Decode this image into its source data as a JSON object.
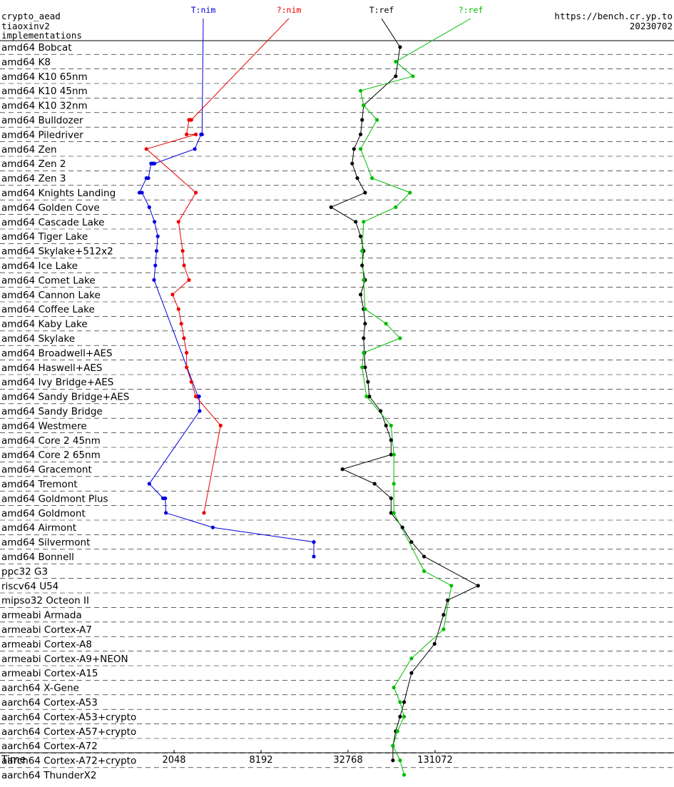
{
  "header": {
    "line1": "crypto_aead",
    "line2": "tiaoxinv2",
    "line3": "implementations",
    "site": "https://bench.cr.yp.to",
    "date": "20230702"
  },
  "chart_data": {
    "type": "scatter",
    "title": "",
    "xlabel": "Time",
    "ylabel": "",
    "x_scale": "log2",
    "xlim": [
      512,
      524288
    ],
    "x_ticks": [
      2048,
      8192,
      32768,
      131072
    ],
    "legend": "top, each series labeled at the top end of its line",
    "colors": {
      "T:nim": "#0000dd",
      "?:nim": "#ee0000",
      "T:ref": "#000000",
      "?:ref": "#00bb00"
    },
    "categories": [
      "amd64 Bobcat",
      "amd64 K8",
      "amd64 K10 65nm",
      "amd64 K10 45nm",
      "amd64 K10 32nm",
      "amd64 Bulldozer",
      "amd64 Piledriver",
      "amd64 Zen",
      "amd64 Zen 2",
      "amd64 Zen 3",
      "amd64 Knights Landing",
      "amd64 Golden Cove",
      "amd64 Cascade Lake",
      "amd64 Tiger Lake",
      "amd64 Skylake+512x2",
      "amd64 Ice Lake",
      "amd64 Comet Lake",
      "amd64 Cannon Lake",
      "amd64 Coffee Lake",
      "amd64 Kaby Lake",
      "amd64 Skylake",
      "amd64 Broadwell+AES",
      "amd64 Haswell+AES",
      "amd64 Ivy Bridge+AES",
      "amd64 Sandy Bridge+AES",
      "amd64 Sandy Bridge",
      "amd64 Westmere",
      "amd64 Core 2 45nm",
      "amd64 Core 2 65nm",
      "amd64 Gracemont",
      "amd64 Tremont",
      "amd64 Goldmont Plus",
      "amd64 Goldmont",
      "amd64 Airmont",
      "amd64 Silvermont",
      "amd64 Bonnell",
      "ppc32 G3",
      "riscv64 U54",
      "mipso32 Octeon II",
      "armeabi Armada",
      "armeabi Cortex-A7",
      "armeabi Cortex-A8",
      "armeabi Cortex-A9+NEON",
      "armeabi Cortex-A15",
      "aarch64 X-Gene",
      "aarch64 Cortex-A53",
      "aarch64 Cortex-A53+crypto",
      "aarch64 Cortex-A57+crypto",
      "aarch64 Cortex-A72",
      "aarch64 Cortex-A72+crypto",
      "aarch64 ThunderX2"
    ],
    "series": [
      {
        "name": "T:nim",
        "points": [
          [
            3,
            6,
            3200
          ],
          [
            3,
            6,
            3150
          ],
          [
            3,
            7,
            2850
          ],
          [
            3,
            8,
            1500
          ],
          [
            3,
            8,
            1480
          ],
          [
            3,
            8,
            1460
          ],
          [
            3,
            8,
            1440
          ],
          [
            3,
            8,
            1420
          ],
          [
            3,
            9,
            1360
          ],
          [
            3,
            9,
            1320
          ],
          [
            3,
            10,
            1180
          ],
          [
            3,
            10,
            1230
          ],
          [
            3,
            11,
            1380
          ],
          [
            3,
            12,
            1500
          ],
          [
            3,
            13,
            1580
          ],
          [
            3,
            14,
            1550
          ],
          [
            3,
            15,
            1520
          ],
          [
            3,
            16,
            1490
          ],
          [
            3,
            24,
            3000
          ],
          [
            3,
            24,
            3050
          ],
          [
            3,
            25,
            3080
          ],
          [
            3,
            30,
            1380
          ],
          [
            3,
            31,
            1720
          ],
          [
            3,
            31,
            1780
          ],
          [
            3,
            32,
            1800
          ],
          [
            3,
            33,
            3800
          ],
          [
            3,
            34,
            19000
          ],
          [
            3,
            35,
            19000
          ]
        ]
      },
      {
        "name": "?:nim",
        "points": [
          [
            3,
            5,
            2700
          ],
          [
            3,
            5,
            2650
          ],
          [
            3,
            5,
            2600
          ],
          [
            3,
            6,
            2500
          ],
          [
            3,
            6,
            2900
          ],
          [
            3,
            7,
            1320
          ],
          [
            3,
            10,
            2900
          ],
          [
            3,
            12,
            2200
          ],
          [
            3,
            14,
            2350
          ],
          [
            3,
            15,
            2400
          ],
          [
            3,
            16,
            2600
          ],
          [
            3,
            17,
            2000
          ],
          [
            3,
            18,
            2200
          ],
          [
            3,
            19,
            2300
          ],
          [
            3,
            20,
            2400
          ],
          [
            3,
            21,
            2500
          ],
          [
            3,
            22,
            2500
          ],
          [
            3,
            23,
            2700
          ],
          [
            3,
            24,
            2900
          ],
          [
            3,
            26,
            4300
          ],
          [
            3,
            32,
            3300
          ]
        ]
      },
      {
        "name": "T:ref",
        "points": [
          [
            3,
            0,
            75000
          ],
          [
            3,
            2,
            70000
          ],
          [
            3,
            4,
            42000
          ],
          [
            3,
            5,
            41000
          ],
          [
            3,
            6,
            40000
          ],
          [
            3,
            7,
            36000
          ],
          [
            3,
            8,
            35000
          ],
          [
            3,
            9,
            38000
          ],
          [
            3,
            10,
            43000
          ],
          [
            3,
            11,
            25000
          ],
          [
            3,
            12,
            37000
          ],
          [
            3,
            13,
            40000
          ],
          [
            3,
            14,
            42000
          ],
          [
            3,
            15,
            41000
          ],
          [
            3,
            16,
            43000
          ],
          [
            3,
            17,
            40000
          ],
          [
            3,
            18,
            42000
          ],
          [
            3,
            19,
            43000
          ],
          [
            3,
            20,
            42000
          ],
          [
            3,
            21,
            42500
          ],
          [
            3,
            22,
            43000
          ],
          [
            3,
            23,
            45000
          ],
          [
            3,
            24,
            46000
          ],
          [
            3,
            25,
            55000
          ],
          [
            3,
            26,
            60000
          ],
          [
            3,
            27,
            65000
          ],
          [
            3,
            28,
            65000
          ],
          [
            3,
            29,
            30000
          ],
          [
            3,
            30,
            50000
          ],
          [
            3,
            31,
            65000
          ],
          [
            3,
            32,
            65000
          ],
          [
            3,
            33,
            78000
          ],
          [
            3,
            34,
            90000
          ],
          [
            3,
            35,
            110000
          ],
          [
            3,
            37,
            260000
          ],
          [
            3,
            38,
            160000
          ],
          [
            3,
            39,
            150000
          ],
          [
            3,
            41,
            130000
          ],
          [
            3,
            43,
            90000
          ],
          [
            3,
            45,
            80000
          ],
          [
            3,
            46,
            75000
          ],
          [
            3,
            47,
            70000
          ],
          [
            3,
            48,
            67000
          ],
          [
            3,
            49,
            67000
          ]
        ]
      },
      {
        "name": "?:ref",
        "points": [
          [
            3,
            1,
            70000
          ],
          [
            3,
            2,
            92000
          ],
          [
            3,
            3,
            40000
          ],
          [
            3,
            4,
            42000
          ],
          [
            3,
            5,
            52000
          ],
          [
            3,
            7,
            40000
          ],
          [
            3,
            9,
            48000
          ],
          [
            3,
            10,
            88000
          ],
          [
            3,
            11,
            70000
          ],
          [
            3,
            12,
            42000
          ],
          [
            3,
            14,
            41000
          ],
          [
            3,
            16,
            42000
          ],
          [
            3,
            18,
            43000
          ],
          [
            3,
            19,
            60000
          ],
          [
            3,
            20,
            75000
          ],
          [
            3,
            21,
            42000
          ],
          [
            3,
            22,
            41000
          ],
          [
            3,
            24,
            44000
          ],
          [
            3,
            26,
            65000
          ],
          [
            3,
            28,
            68000
          ],
          [
            3,
            30,
            68000
          ],
          [
            3,
            32,
            68000
          ],
          [
            3,
            36,
            110000
          ],
          [
            3,
            37,
            170000
          ],
          [
            3,
            40,
            150000
          ],
          [
            3,
            42,
            90000
          ],
          [
            3,
            44,
            68000
          ],
          [
            3,
            45,
            75000
          ],
          [
            3,
            46,
            80000
          ],
          [
            3,
            47,
            72000
          ],
          [
            3,
            48,
            67000
          ],
          [
            3,
            49,
            75000
          ],
          [
            3,
            50,
            80000
          ]
        ]
      }
    ]
  }
}
